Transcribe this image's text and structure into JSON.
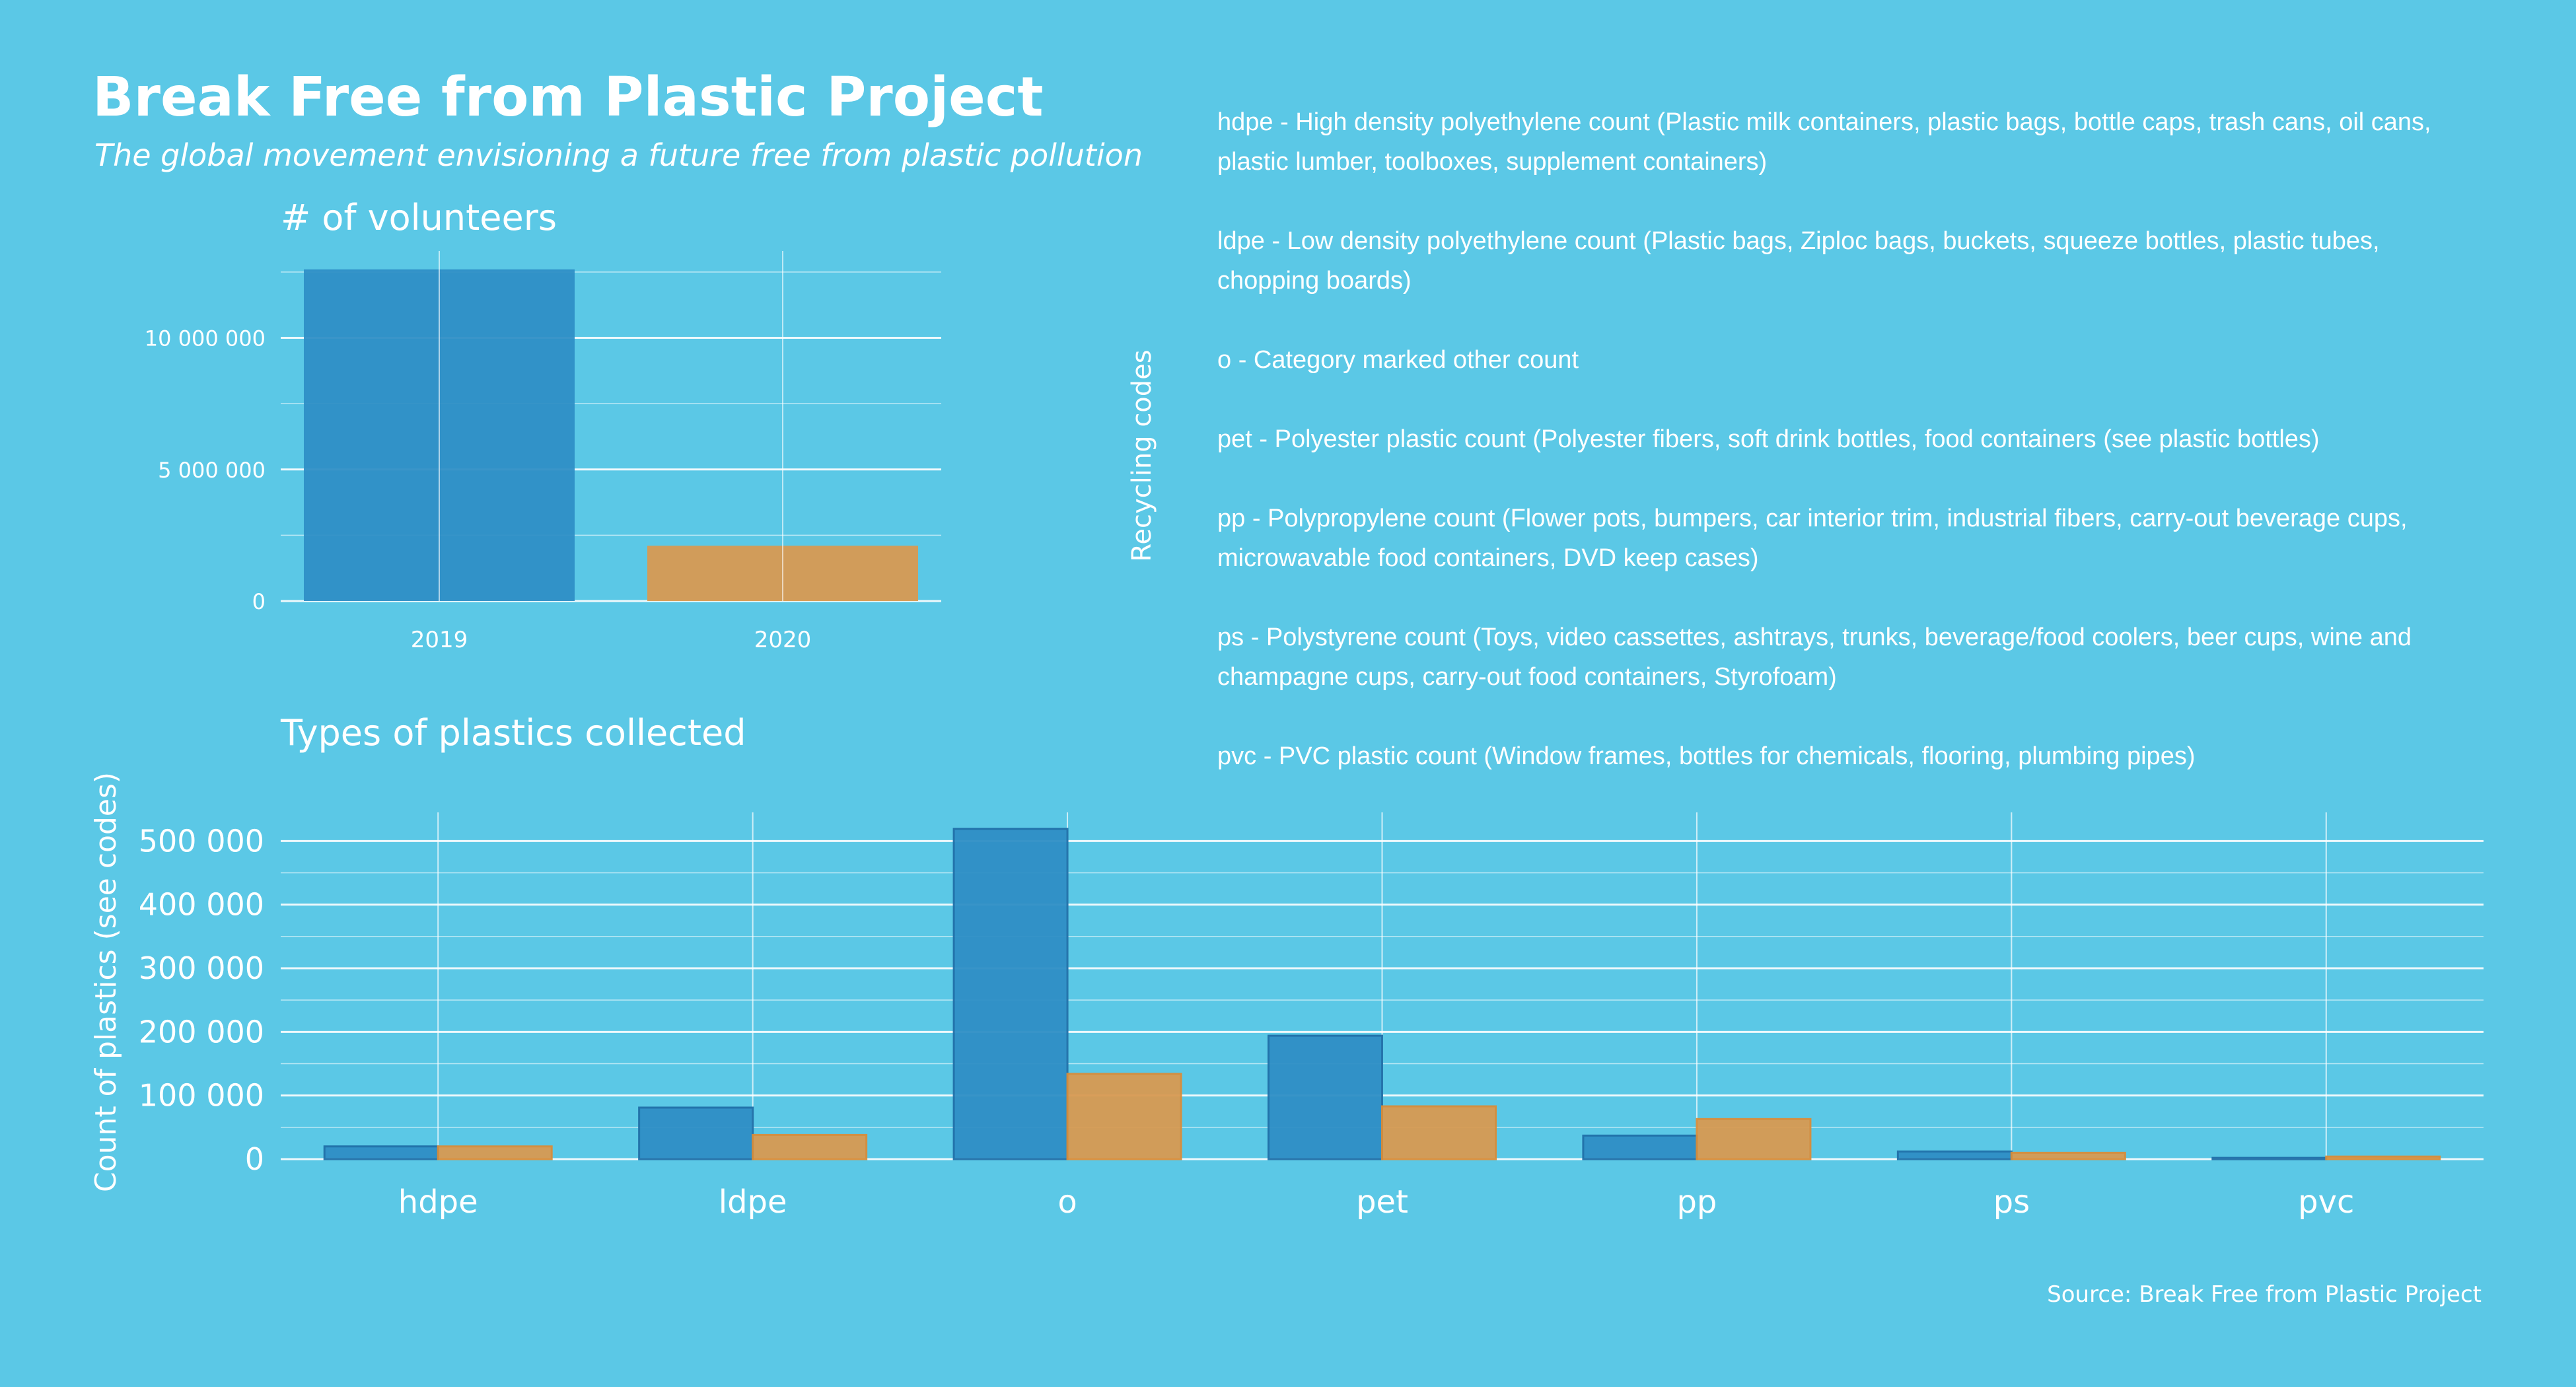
{
  "title": "Break Free from Plastic Project",
  "subtitle": "The global movement envisioning a future free from plastic pollution",
  "volunteers_title": "# of volunteers",
  "types_title": "Types of plastics collected",
  "recycling_codes_label": "Recycling codes",
  "source": "Source: Break Free from Plastic Project",
  "codes": [
    {
      "text": "hdpe - High density polyethylene count (Plastic milk containers, plastic bags, bottle caps, trash cans, oil cans, plastic lumber, toolboxes, supplement containers)"
    },
    {
      "text": "ldpe - Low density polyethylene count (Plastic bags, Ziploc bags, buckets, squeeze bottles, plastic tubes, chopping boards)"
    },
    {
      "text": "o - Category marked other count"
    },
    {
      "text": "pet - Polyester plastic count (Polyester fibers, soft drink bottles, food containers (see plastic bottles)"
    },
    {
      "text": "pp - Polypropylene count (Flower pots, bumpers, car interior trim, industrial fibers, carry-out beverage cups, microwavable food containers, DVD keep cases)"
    },
    {
      "text": "ps - Polystyrene count (Toys, video cassettes, ashtrays, trunks, beverage/food coolers, beer cups, wine and champagne cups, carry-out food containers, Styrofoam)"
    },
    {
      "text": "pvc - PVC plastic count (Window frames, bottles for chemicals, flooring, plumbing pipes)"
    }
  ],
  "colors": {
    "background": "#5bc8e6",
    "y2019": "#2f8fc6",
    "y2019_edge": "#1f6fa8",
    "y2020": "#d89a52",
    "y2020_edge": "#d98d3a",
    "grid": "#ffffff"
  },
  "chart_data": [
    {
      "type": "bar",
      "title": "# of volunteers",
      "categories": [
        "2019",
        "2020"
      ],
      "values": [
        12600000,
        2100000
      ],
      "ylim": [
        0,
        13300000
      ],
      "yticks": [
        0,
        5000000,
        10000000
      ],
      "ytick_labels": [
        "0",
        "5 000 000",
        "10 000 000"
      ],
      "grid": true
    },
    {
      "type": "bar",
      "title": "Types of plastics collected",
      "ylabel": "Count  of plastics (see codes)",
      "categories": [
        "hdpe",
        "ldpe",
        "o",
        "pet",
        "pp",
        "ps",
        "pvc"
      ],
      "series": [
        {
          "name": "2019",
          "values": [
            20000,
            81000,
            519000,
            194000,
            37000,
            12000,
            2000
          ]
        },
        {
          "name": "2020",
          "values": [
            20000,
            38000,
            134000,
            83000,
            63000,
            10000,
            4000
          ]
        }
      ],
      "ylim": [
        0,
        545000
      ],
      "yticks": [
        0,
        100000,
        200000,
        300000,
        400000,
        500000
      ],
      "ytick_labels": [
        "0",
        "100 000",
        "200 000",
        "300 000",
        "400 000",
        "500 000"
      ],
      "grid": true
    }
  ]
}
